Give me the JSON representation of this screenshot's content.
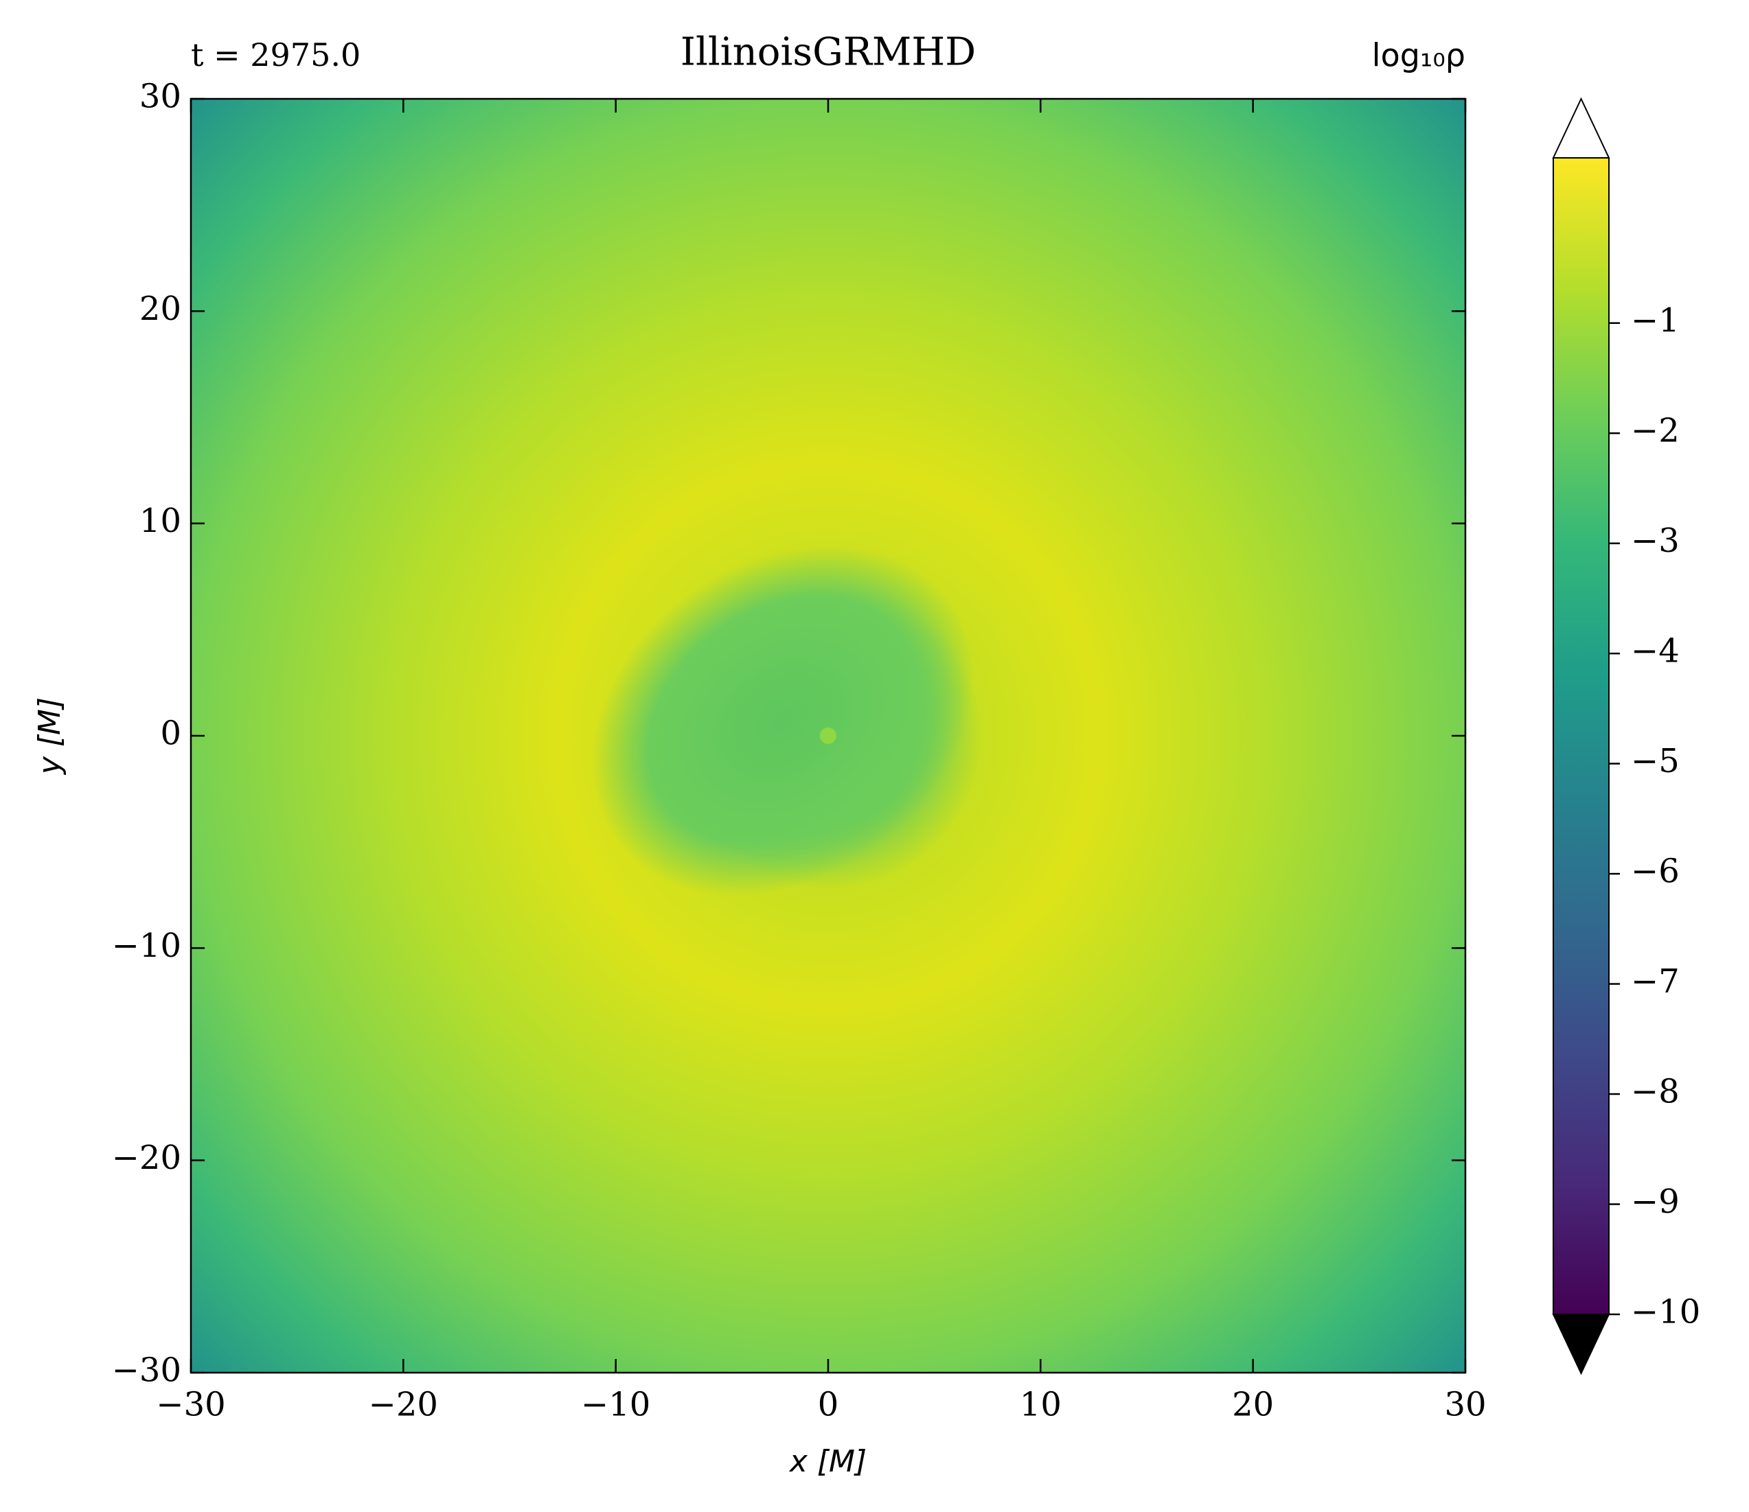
{
  "chart_data": {
    "type": "heatmap",
    "title": "IllinoisGRMHD",
    "annotations": {
      "left": "t = 2975.0",
      "right": "log₁₀ρ"
    },
    "x_label": "x [M]",
    "y_label": "y [M]",
    "xlim": [
      -30,
      30
    ],
    "ylim": [
      -30,
      30
    ],
    "xticks": [
      {
        "value": -30,
        "label": "−30"
      },
      {
        "value": -20,
        "label": "−20"
      },
      {
        "value": -10,
        "label": "−10"
      },
      0,
      10,
      20,
      30
    ],
    "yticks": [
      {
        "value": -30,
        "label": "−30"
      },
      {
        "value": -20,
        "label": "−20"
      },
      {
        "value": -10,
        "label": "−10"
      },
      0,
      10,
      20,
      30
    ],
    "colorbar": {
      "colormap": "viridis",
      "clim": [
        -10,
        0.5
      ],
      "extend": "both",
      "ticks": [
        {
          "value": -10,
          "label": "−10"
        },
        {
          "value": -9,
          "label": "−9"
        },
        {
          "value": -8,
          "label": "−8"
        },
        {
          "value": -7,
          "label": "−7"
        },
        {
          "value": -6,
          "label": "−6"
        },
        {
          "value": -5,
          "label": "−5"
        },
        {
          "value": -4,
          "label": "−4"
        },
        {
          "value": -3,
          "label": "−3"
        },
        {
          "value": -2,
          "label": "−2"
        },
        {
          "value": -1,
          "label": "−1"
        }
      ]
    }
  }
}
